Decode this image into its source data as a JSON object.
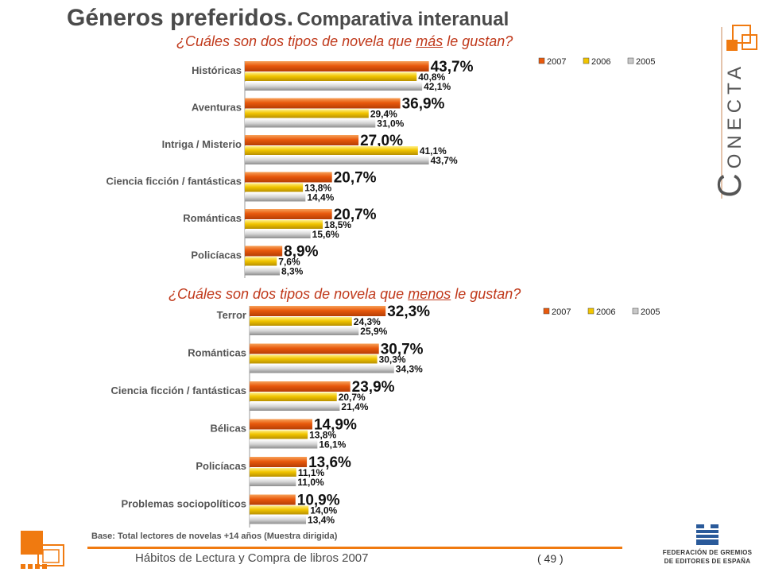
{
  "title": {
    "main": "Géneros preferidos.",
    "sub": "Comparativa interanual"
  },
  "footer": {
    "text": "Hábitos de Lectura y Compra de libros 2007",
    "page": "( 49 )"
  },
  "base_note": "Base:  Total lectores de novelas +14 años (Muestra dirigida)",
  "brand": {
    "conecta_initial": "C",
    "conecta_rest": "ONECTA"
  },
  "publisher_logo": {
    "line1": "FEDERACIÓN DE GREMIOS",
    "line2": "DE EDITORES DE ESPAÑA"
  },
  "colors": {
    "s2007": "#e8590c",
    "s2006": "#f2c500",
    "s2005": "#c8c8c8",
    "accent": "#f07a10",
    "question": "#c0391b"
  },
  "chart_data": [
    {
      "type": "bar",
      "orientation": "horizontal",
      "question": {
        "before": "¿Cuáles son dos tipos de novela que ",
        "underlined": "más",
        "after": " le gustan?"
      },
      "categories": [
        "Históricas",
        "Aventuras",
        "Intriga / Misterio",
        "Ciencia ficción / fantásticas",
        "Románticas",
        "Policíacas"
      ],
      "series": [
        {
          "name": "2007",
          "values": [
            43.7,
            36.9,
            27.0,
            20.7,
            20.7,
            8.9
          ],
          "labels": [
            "43,7%",
            "36,9%",
            "27,0%",
            "20,7%",
            "20,7%",
            "8,9%"
          ]
        },
        {
          "name": "2006",
          "values": [
            40.8,
            29.4,
            41.1,
            13.8,
            18.5,
            7.6
          ],
          "labels": [
            "40,8%",
            "29,4%",
            "41,1%",
            "13,8%",
            "18,5%",
            "7,6%"
          ]
        },
        {
          "name": "2005",
          "values": [
            42.1,
            31.0,
            43.7,
            14.4,
            15.6,
            8.3
          ],
          "labels": [
            "42,1%",
            "31,0%",
            "43,7%",
            "14,4%",
            "15,6%",
            "8,3%"
          ]
        }
      ],
      "legend_position": "top-right"
    },
    {
      "type": "bar",
      "orientation": "horizontal",
      "question": {
        "before": "¿Cuáles son dos tipos de novela que ",
        "underlined": "menos",
        "after": " le gustan?"
      },
      "categories": [
        "Terror",
        "Románticas",
        "Ciencia ficción / fantásticas",
        "Bélicas",
        "Policíacas",
        "Problemas sociopolíticos"
      ],
      "series": [
        {
          "name": "2007",
          "values": [
            32.3,
            30.7,
            23.9,
            14.9,
            13.6,
            10.9
          ],
          "labels": [
            "32,3%",
            "30,7%",
            "23,9%",
            "14,9%",
            "13,6%",
            "10,9%"
          ]
        },
        {
          "name": "2006",
          "values": [
            24.3,
            30.3,
            20.7,
            13.8,
            11.1,
            14.0
          ],
          "labels": [
            "24,3%",
            "30,3%",
            "20,7%",
            "13,8%",
            "11,1%",
            "14,0%"
          ]
        },
        {
          "name": "2005",
          "values": [
            25.9,
            34.3,
            21.4,
            16.1,
            11.0,
            13.4
          ],
          "labels": [
            "25,9%",
            "34,3%",
            "21,4%",
            "16,1%",
            "11,0%",
            "13,4%"
          ]
        }
      ],
      "legend_position": "top-right"
    }
  ]
}
